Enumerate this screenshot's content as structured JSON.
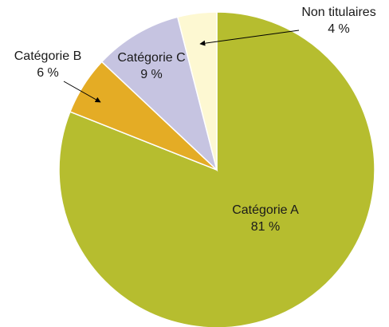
{
  "chart_data": {
    "type": "pie",
    "categories": [
      "Catégorie A",
      "Catégorie B",
      "Catégorie C",
      "Non titulaires"
    ],
    "values": [
      81,
      6,
      9,
      4
    ],
    "value_labels": [
      "81 %",
      "6 %",
      "9 %",
      "4 %"
    ],
    "colors": [
      "#b6bd2f",
      "#e4ac25",
      "#c6c4e1",
      "#fdf8d2"
    ]
  }
}
